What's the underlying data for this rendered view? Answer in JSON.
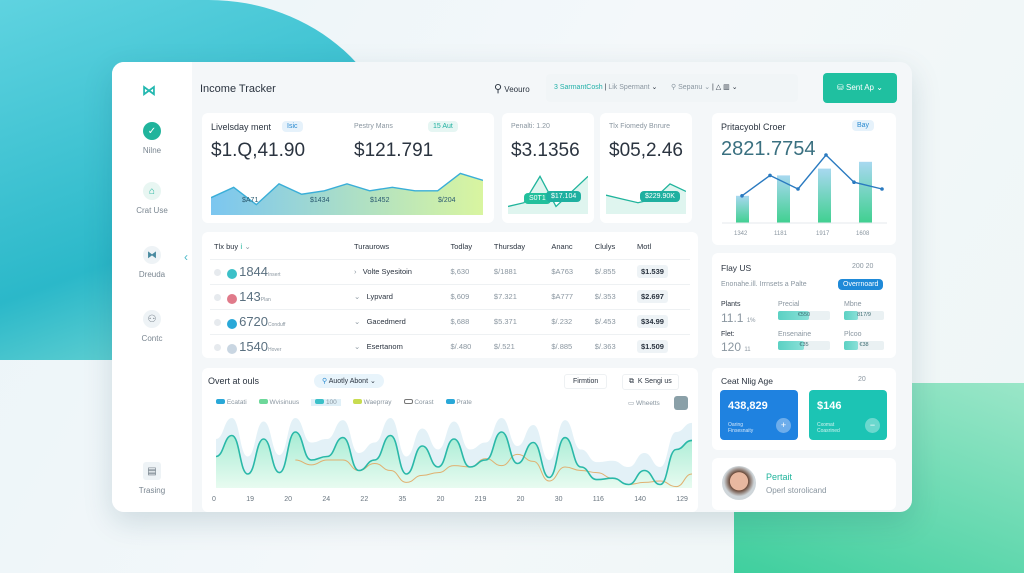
{
  "header": {
    "title": "Income Tracker",
    "search": "Veouro",
    "seg1": "3 SarmantCosh",
    "seg2": "Lik Spermant",
    "seg3": "Sepanu",
    "cta": "Sent Ap"
  },
  "sidebar": {
    "items": [
      {
        "label": "Nilne",
        "icon": "check-icon"
      },
      {
        "label": "Crat Use",
        "icon": "home-icon"
      },
      {
        "label": "Dreuda",
        "icon": "grid-icon"
      },
      {
        "label": "Contc",
        "icon": "users-icon"
      },
      {
        "label": "Trasing",
        "icon": "card-icon"
      }
    ]
  },
  "card1": {
    "title": "Livelsday ment",
    "badge": "Isic",
    "title2": "Pestry Mans",
    "badge2": "15 Aut",
    "value1": "$1.Q,41.90",
    "value2": "$121.791",
    "labels": [
      "$A71",
      "$1434",
      "$1452",
      "$/204"
    ],
    "series": [
      5,
      8,
      3,
      9,
      6,
      7,
      9,
      7,
      8,
      7,
      7,
      12,
      10
    ]
  },
  "card2": {
    "title": "Penalti: 1.20",
    "value": "$3.1356",
    "tag1": "S0T1",
    "tag2": "$17.104",
    "series": [
      2,
      3,
      10,
      2,
      6,
      10
    ]
  },
  "card3": {
    "title": "Tlx Fiomedy Bnrure",
    "value": "$05,2.46",
    "tag": "$229.90K",
    "series": [
      5,
      4,
      3,
      4,
      8,
      6
    ]
  },
  "right1": {
    "title": "Pritacyobl Croer",
    "badge": "Bay",
    "value": "2821.7754",
    "bars": [
      4,
      7,
      8,
      9
    ],
    "line": [
      4,
      7,
      5,
      10,
      6,
      5
    ],
    "labels": [
      "1342",
      "1181",
      "1917",
      "1608"
    ]
  },
  "table": {
    "title": "Tlx buy",
    "columns": [
      "Turaurows",
      "Todlay",
      "Thursday",
      "Ananc",
      "Clulys",
      "Motl"
    ],
    "rows": [
      {
        "num": "1844",
        "sub": "Insert",
        "name": "Volte Syesitoin",
        "c": [
          "$,630",
          "$/1881",
          "$A763",
          "$/.855"
        ],
        "tot": "$1.539",
        "color": "#3cc0c8"
      },
      {
        "num": "143",
        "sub": "Plan",
        "name": "Lypvard",
        "c": [
          "$,609",
          "$7.321",
          "$A777",
          "$/.353"
        ],
        "tot": "$2.697",
        "color": "#e07a8a"
      },
      {
        "num": "6720",
        "sub": "Conduff",
        "name": "Gacedmerd",
        "c": [
          "$,688",
          "$5.371",
          "$/.232",
          "$/.453"
        ],
        "tot": "$34.99",
        "color": "#2aa8d8"
      },
      {
        "num": "1540",
        "sub": "Hover",
        "name": "Esertanom",
        "c": [
          "$/.480",
          "$/.521",
          "$/.885",
          "$/.363"
        ],
        "tot": "$1.509",
        "color": "#c9d6e2"
      }
    ]
  },
  "overview": {
    "title": "Overt at ouls",
    "search": "Auotly Abont",
    "btn1": "Firmtion",
    "btn2": "K Sengi us",
    "legend": [
      "Ecatati",
      "Wvisinuus",
      "100",
      "Waeprray",
      "Corast",
      "Prate"
    ],
    "wheels": "Wheetts",
    "xlabels": [
      "0",
      "19",
      "20",
      "24",
      "22",
      "35",
      "20",
      "219",
      "20",
      "30",
      "116",
      "140",
      "129"
    ],
    "series": [
      45,
      75,
      20,
      70,
      22,
      80,
      40,
      45,
      72,
      25,
      40,
      75,
      20,
      60,
      30,
      70,
      30,
      40,
      80,
      35,
      65,
      15,
      72,
      30,
      12,
      14,
      5,
      25,
      5,
      55,
      68
    ],
    "series2": [
      null,
      null,
      null,
      null,
      null,
      40,
      33,
      40,
      40,
      25,
      35,
      25,
      8,
      18,
      22,
      32,
      30,
      42,
      32,
      48,
      38,
      10,
      30,
      25,
      22,
      14,
      5,
      8,
      10,
      2,
      20
    ]
  },
  "flay": {
    "title": "Flay US",
    "date": "200 20",
    "subtitle": "Enonahe.ill. Irrnsets a Palte",
    "btn": "Overrnoard",
    "k1": "Plants",
    "v1": "11.1",
    "p1": "1%",
    "k2": "Flet:",
    "v2": "120",
    "p2": "11",
    "b1": "Precial",
    "b1v": "€550",
    "b1f": 0.6,
    "b2": "Mbne",
    "b2v": "817/9",
    "b2f": 0.35,
    "b3": "Ensenaine",
    "b3v": "€35",
    "b3f": 0.5,
    "b4": "Plcoo",
    "b4v": "€38",
    "b4f": 0.35
  },
  "ceat": {
    "title": "Ceat Nlig Age",
    "date": "20",
    "a_value": "438,829",
    "a_sub": "Oaring Finsesnaity",
    "b_value": "$146",
    "b_sub": "Cxomat Coasrined"
  },
  "profile": {
    "name": "Pertait",
    "sub": "Operl storolicand"
  }
}
